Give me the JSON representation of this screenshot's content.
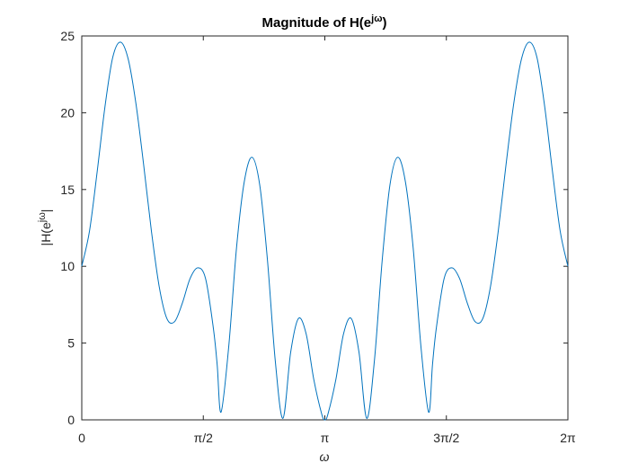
{
  "chart_data": {
    "type": "line",
    "title_main": "Magnitude of H(e",
    "title_sup": "jω",
    "title_close": ")",
    "xlabel": "ω",
    "ylabel_main": "|H(e",
    "ylabel_sup": "jω",
    "ylabel_close": "|",
    "xlim": [
      0,
      6.2832
    ],
    "ylim": [
      0,
      25
    ],
    "xticks": [
      {
        "value": 0,
        "label": "0"
      },
      {
        "value": 1.5708,
        "label": "π/2"
      },
      {
        "value": 3.1416,
        "label": "π"
      },
      {
        "value": 4.7124,
        "label": "3π/2"
      },
      {
        "value": 6.2832,
        "label": "2π"
      }
    ],
    "yticks": [
      0,
      5,
      10,
      15,
      20,
      25
    ],
    "grid": false,
    "line_color": "#0072BD",
    "series": [
      {
        "x": [
          0.0,
          0.1,
          0.2,
          0.3,
          0.4,
          0.5,
          0.6,
          0.7,
          0.8,
          0.9,
          1.0,
          1.1,
          1.2,
          1.3,
          1.4,
          1.5,
          1.6,
          1.7,
          1.75,
          1.8,
          1.9,
          2.0,
          2.1,
          2.2,
          2.3,
          2.4,
          2.5,
          2.6,
          2.7,
          2.8,
          2.9,
          3.0,
          3.1,
          3.1416
        ],
        "y": [
          10.0,
          12.3,
          16.2,
          20.4,
          23.6,
          24.6,
          23.5,
          20.6,
          16.6,
          12.3,
          8.7,
          6.6,
          6.4,
          7.6,
          9.2,
          9.9,
          9.2,
          6.0,
          3.6,
          0.5,
          4.8,
          11.2,
          15.5,
          17.1,
          15.3,
          10.4,
          3.9,
          0.1,
          4.4,
          6.6,
          5.6,
          2.6,
          0.4,
          0.0
        ]
      }
    ]
  }
}
